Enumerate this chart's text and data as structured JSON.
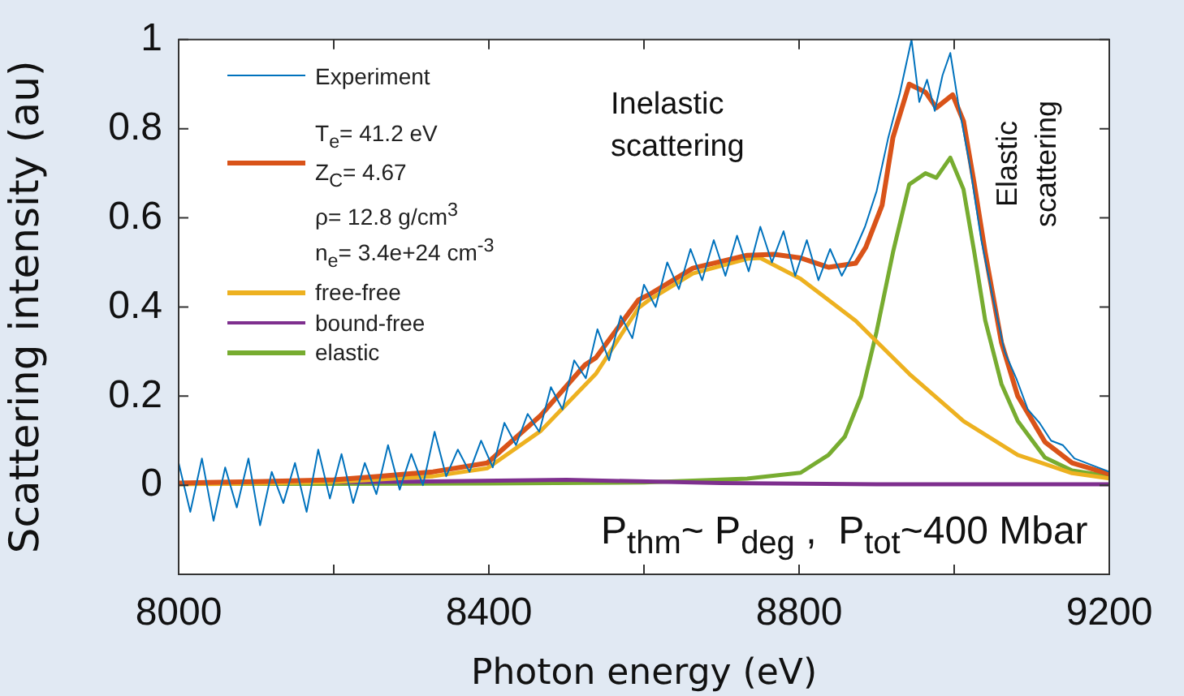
{
  "chart_data": {
    "type": "line",
    "xlabel": "Photon energy (eV)",
    "ylabel": "Scattering intensity (au)",
    "xlim": [
      8000,
      9200
    ],
    "xticks": [
      8000,
      {
        "value": 8200,
        "label": null
      },
      8400,
      {
        "value": 8600,
        "label": null
      },
      8800,
      {
        "value": 9000,
        "label": null
      },
      9200
    ],
    "ylim": [
      -0.2,
      1
    ],
    "yticks": [
      {
        "value": -0.2,
        "label": null
      },
      0,
      0.2,
      0.4,
      0.6,
      0.8,
      1
    ],
    "grid": false,
    "legend": "top left",
    "marker": "none",
    "line_style": "solid",
    "annotations": [
      "Inelastic\nscattering",
      "Elastic\nscattering",
      "P$_{thm}$~ P$_{deg}$ ,  P$_{tot}$~400 Mbar"
    ],
    "series": [
      {
        "name": "Experiment",
        "color": "#0072bd",
        "x": [
          8000,
          8015,
          8030,
          8045,
          8060,
          8075,
          8090,
          8105,
          8120,
          8135,
          8150,
          8165,
          8180,
          8195,
          8210,
          8225,
          8240,
          8255,
          8270,
          8285,
          8300,
          8315,
          8330,
          8345,
          8360,
          8375,
          8390,
          8405,
          8420,
          8435,
          8450,
          8465,
          8480,
          8495,
          8510,
          8525,
          8540,
          8555,
          8570,
          8585,
          8600,
          8615,
          8630,
          8645,
          8660,
          8675,
          8690,
          8705,
          8720,
          8735,
          8750,
          8765,
          8780,
          8795,
          8810,
          8825,
          8840,
          8855,
          8870,
          8885,
          8900,
          8915,
          8930,
          8945,
          8955,
          8965,
          8975,
          8985,
          8995,
          9005,
          9020,
          9035,
          9050,
          9065,
          9080,
          9095,
          9110,
          9125,
          9140,
          9155,
          9170,
          9185,
          9200
        ],
        "values": [
          0.05,
          -0.06,
          0.06,
          -0.08,
          0.04,
          -0.05,
          0.06,
          -0.09,
          0.03,
          -0.04,
          0.05,
          -0.06,
          0.08,
          -0.03,
          0.07,
          -0.04,
          0.05,
          -0.02,
          0.09,
          -0.01,
          0.07,
          0.0,
          0.12,
          0.02,
          0.08,
          0.03,
          0.1,
          0.04,
          0.14,
          0.09,
          0.16,
          0.12,
          0.22,
          0.17,
          0.28,
          0.24,
          0.35,
          0.28,
          0.38,
          0.33,
          0.45,
          0.4,
          0.5,
          0.44,
          0.53,
          0.46,
          0.55,
          0.47,
          0.56,
          0.48,
          0.58,
          0.5,
          0.57,
          0.47,
          0.55,
          0.46,
          0.53,
          0.47,
          0.52,
          0.58,
          0.66,
          0.78,
          0.88,
          1.0,
          0.86,
          0.91,
          0.84,
          0.92,
          0.97,
          0.86,
          0.72,
          0.55,
          0.42,
          0.3,
          0.24,
          0.17,
          0.14,
          0.1,
          0.09,
          0.06,
          0.05,
          0.04,
          0.03
        ]
      },
      {
        "name": "T$_{e}$= 41.2 eV\nZ$_{C}$= 4.67\nρ= 12.8 g/cm$^{3}$\nn$_{e}$= 3.4e+24 cm$^{-3}$",
        "color": "#d95319",
        "x": [
          8000,
          8100,
          8200,
          8258,
          8328,
          8398,
          8467,
          8524,
          8538,
          8593,
          8607,
          8663,
          8733,
          8768,
          8802,
          8838,
          8873,
          8886,
          8907,
          8921,
          8942,
          8963,
          8977,
          8998,
          9012,
          9026,
          9040,
          9061,
          9082,
          9117,
          9152,
          9200
        ],
        "values": [
          0.005,
          0.008,
          0.012,
          0.02,
          0.03,
          0.05,
          0.157,
          0.27,
          0.286,
          0.416,
          0.428,
          0.487,
          0.516,
          0.518,
          0.51,
          0.489,
          0.498,
          0.534,
          0.628,
          0.78,
          0.9,
          0.882,
          0.847,
          0.876,
          0.817,
          0.675,
          0.522,
          0.32,
          0.2,
          0.097,
          0.05,
          0.025
        ]
      },
      {
        "name": "free-free",
        "color": "#edb120",
        "x": [
          8000,
          8100,
          8200,
          8328,
          8398,
          8467,
          8538,
          8593,
          8607,
          8663,
          8733,
          8750,
          8802,
          8873,
          8942,
          9012,
          9082,
          9152,
          9200
        ],
        "values": [
          0.002,
          0.004,
          0.007,
          0.02,
          0.038,
          0.122,
          0.25,
          0.398,
          0.416,
          0.475,
          0.508,
          0.51,
          0.463,
          0.369,
          0.25,
          0.144,
          0.068,
          0.027,
          0.015
        ]
      },
      {
        "name": "bound-free",
        "color": "#7e2f8e",
        "x": [
          8000,
          8300,
          8500,
          8700,
          8900,
          9200
        ],
        "values": [
          0.005,
          0.008,
          0.012,
          0.005,
          0.002,
          0.002
        ]
      },
      {
        "name": "elastic",
        "color": "#77ac30",
        "x": [
          8000,
          8200,
          8400,
          8600,
          8733,
          8802,
          8838,
          8859,
          8880,
          8900,
          8921,
          8942,
          8963,
          8977,
          8995,
          9012,
          9026,
          9040,
          9061,
          9082,
          9117,
          9152,
          9200
        ],
        "values": [
          0.003,
          0.003,
          0.004,
          0.006,
          0.015,
          0.028,
          0.068,
          0.109,
          0.2,
          0.345,
          0.522,
          0.675,
          0.7,
          0.69,
          0.735,
          0.664,
          0.522,
          0.37,
          0.227,
          0.144,
          0.062,
          0.033,
          0.02
        ]
      }
    ]
  }
}
